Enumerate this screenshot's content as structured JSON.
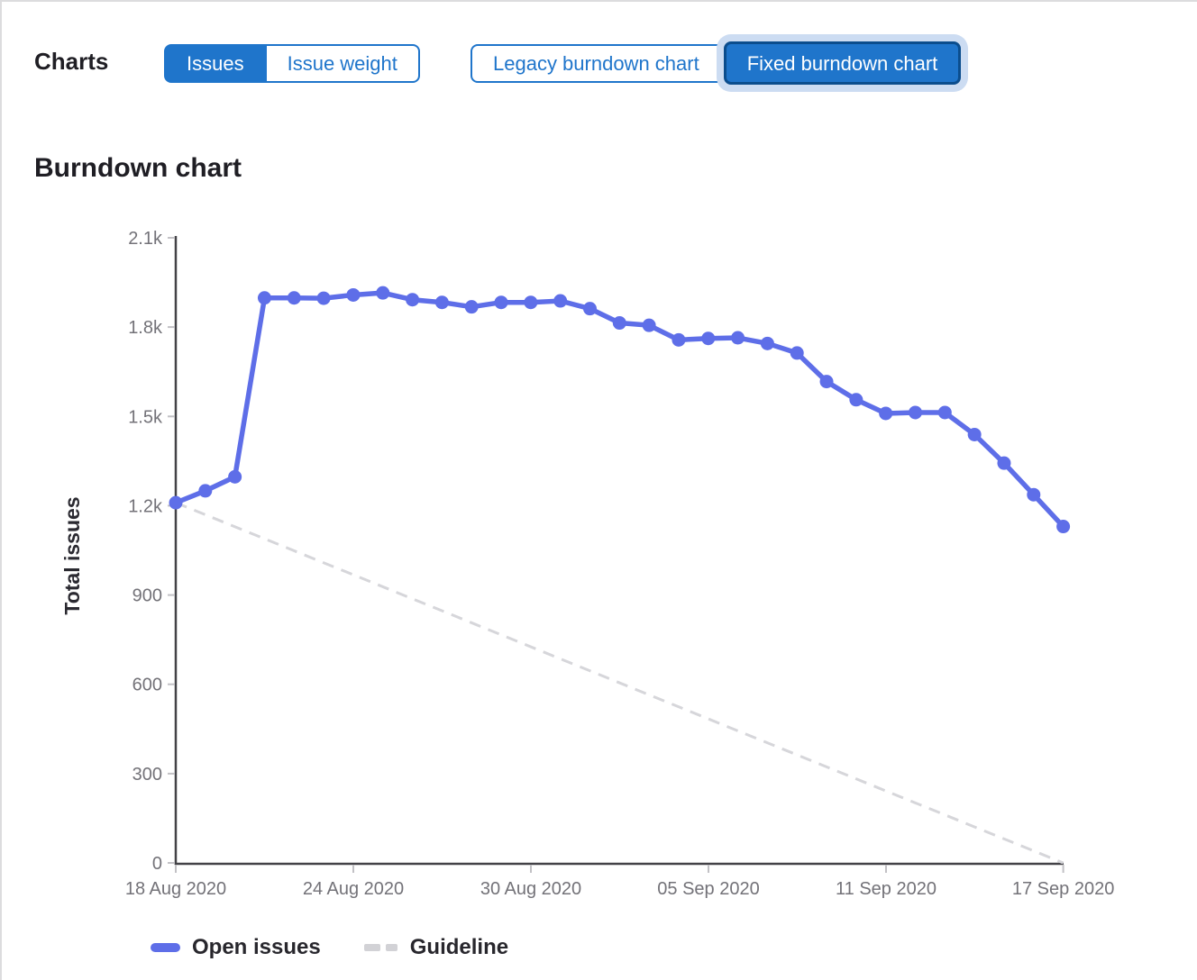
{
  "header": {
    "charts_label": "Charts",
    "accent": "#1f75cb",
    "active_border": "#0b4d8d",
    "focus_ring": "#ccdcf2",
    "groups": [
      {
        "name": "chart-metric-toggle",
        "buttons": [
          {
            "label": "Issues",
            "active": true
          },
          {
            "label": "Issue weight",
            "active": false
          }
        ]
      },
      {
        "name": "burndown-version-toggle",
        "buttons": [
          {
            "label": "Legacy burndown chart",
            "active": false
          },
          {
            "label": "Fixed burndown chart",
            "active": true,
            "focused": true
          }
        ]
      }
    ]
  },
  "section": {
    "title": "Burndown chart"
  },
  "chart_data": {
    "type": "line",
    "title": "Burndown chart",
    "xlabel": "",
    "ylabel": "Total issues",
    "ylim": [
      0,
      2100
    ],
    "grid": false,
    "legend_position": "bottom-left",
    "y_ticks": [
      "2.1k",
      "1.8k",
      "1.5k",
      "1.2k",
      "900",
      "600",
      "300",
      "0"
    ],
    "y_tick_values": [
      2100,
      1800,
      1500,
      1200,
      900,
      600,
      300,
      0
    ],
    "x_tick_labels": [
      "18 Aug 2020",
      "24 Aug 2020",
      "30 Aug 2020",
      "05 Sep 2020",
      "11 Sep 2020",
      "17 Sep 2020"
    ],
    "x_tick_days": [
      0,
      6,
      12,
      18,
      24,
      30
    ],
    "x_range_days": 30,
    "series": [
      {
        "name": "Open issues",
        "style": "solid",
        "color": "#5e6ee8",
        "values": [
          1210,
          1250,
          1297,
          1898,
          1898,
          1897,
          1908,
          1915,
          1892,
          1883,
          1868,
          1883,
          1883,
          1888,
          1862,
          1814,
          1806,
          1757,
          1762,
          1764,
          1745,
          1713,
          1617,
          1556,
          1510,
          1513,
          1513,
          1439,
          1343,
          1237,
          1130
        ]
      },
      {
        "name": "Guideline",
        "style": "dashed",
        "color": "#d6d6da",
        "points": [
          [
            0,
            1210
          ],
          [
            30,
            0
          ]
        ]
      }
    ],
    "legend": [
      {
        "label": "Open issues",
        "swatch": "solid-line"
      },
      {
        "label": "Guideline",
        "swatch": "dashed-line"
      }
    ]
  }
}
